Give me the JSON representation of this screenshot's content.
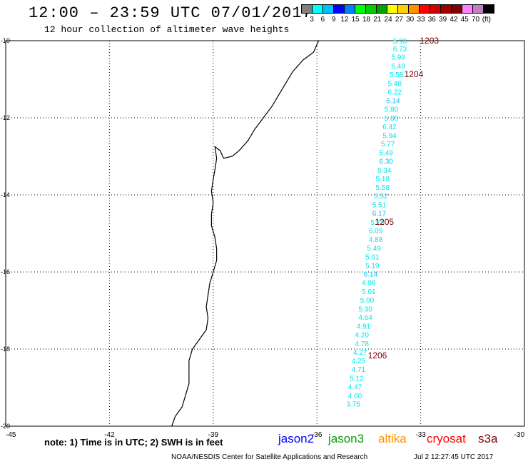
{
  "header": {
    "title": "12:00 – 23:59 UTC 07/01/2017",
    "subtitle": "12 hour collection of altimeter wave heights"
  },
  "colorbar": {
    "colors": [
      "#808080",
      "#00ffff",
      "#00bfff",
      "#0000ff",
      "#0080ff",
      "#00ff00",
      "#00cc00",
      "#00a000",
      "#ffff00",
      "#ffd000",
      "#ff9000",
      "#ff0000",
      "#d00000",
      "#a00000",
      "#800000",
      "#ff80ff",
      "#c080c0",
      "#000000"
    ],
    "ticks": [
      "3",
      "6",
      "9",
      "12",
      "15",
      "18",
      "21",
      "24",
      "27",
      "30",
      "33",
      "36",
      "39",
      "42",
      "45",
      "70",
      "(ft)"
    ]
  },
  "map": {
    "x_ticks": [
      "-45",
      "-42",
      "-39",
      "-36",
      "-33",
      "-30"
    ],
    "y_ticks": [
      "-10",
      "-12",
      "-14",
      "-16",
      "-18",
      "-20"
    ],
    "grid": true,
    "coast_color": "#000000"
  },
  "observations": [
    {
      "lon": -33.6,
      "lat": -10.0,
      "swh": "5.93",
      "color": "#00e5ee"
    },
    {
      "lon": -33.6,
      "lat": -10.2,
      "swh": "6.73",
      "color": "#00e5ee"
    },
    {
      "lon": -33.65,
      "lat": -10.42,
      "swh": "5.93",
      "color": "#00e5ee"
    },
    {
      "lon": -33.65,
      "lat": -10.65,
      "swh": "6.49",
      "color": "#00e5ee"
    },
    {
      "lon": -33.7,
      "lat": -10.87,
      "swh": "5.58",
      "color": "#00e5ee"
    },
    {
      "lon": -33.75,
      "lat": -11.1,
      "swh": "5.48",
      "color": "#00e5ee"
    },
    {
      "lon": -33.75,
      "lat": -11.32,
      "swh": "6.22",
      "color": "#00e5ee"
    },
    {
      "lon": -33.8,
      "lat": -11.55,
      "swh": "6.14",
      "color": "#00bfff"
    },
    {
      "lon": -33.85,
      "lat": -11.77,
      "swh": "5.80",
      "color": "#00e5ee"
    },
    {
      "lon": -33.85,
      "lat": -12.0,
      "swh": "5.80",
      "color": "#00e5ee"
    },
    {
      "lon": -33.9,
      "lat": -12.22,
      "swh": "6.42",
      "color": "#00e5ee"
    },
    {
      "lon": -33.9,
      "lat": -12.45,
      "swh": "5.94",
      "color": "#00e5ee"
    },
    {
      "lon": -33.95,
      "lat": -12.67,
      "swh": "5.77",
      "color": "#00e5ee"
    },
    {
      "lon": -34.0,
      "lat": -12.9,
      "swh": "5.49",
      "color": "#00e5ee"
    },
    {
      "lon": -34.0,
      "lat": -13.12,
      "swh": "6.30",
      "color": "#00bfff"
    },
    {
      "lon": -34.05,
      "lat": -13.35,
      "swh": "5.34",
      "color": "#00e5ee"
    },
    {
      "lon": -34.1,
      "lat": -13.57,
      "swh": "5.18",
      "color": "#00e5ee"
    },
    {
      "lon": -34.1,
      "lat": -13.8,
      "swh": "5.58",
      "color": "#00e5ee"
    },
    {
      "lon": -34.15,
      "lat": -14.02,
      "swh": "5.52",
      "color": "#00e5ee"
    },
    {
      "lon": -34.2,
      "lat": -14.25,
      "swh": "5.51",
      "color": "#00e5ee"
    },
    {
      "lon": -34.2,
      "lat": -14.47,
      "swh": "6.17",
      "color": "#00bfff"
    },
    {
      "lon": -34.25,
      "lat": -14.7,
      "swh": "5.73",
      "color": "#00e5ee"
    },
    {
      "lon": -34.3,
      "lat": -14.92,
      "swh": "6.09",
      "color": "#00e5ee"
    },
    {
      "lon": -34.3,
      "lat": -15.15,
      "swh": "4.88",
      "color": "#00e5ee"
    },
    {
      "lon": -34.35,
      "lat": -15.37,
      "swh": "5.49",
      "color": "#00e5ee"
    },
    {
      "lon": -34.4,
      "lat": -15.6,
      "swh": "5.01",
      "color": "#00e5ee"
    },
    {
      "lon": -34.4,
      "lat": -15.82,
      "swh": "5.19",
      "color": "#00e5ee"
    },
    {
      "lon": -34.45,
      "lat": -16.05,
      "swh": "6.14",
      "color": "#00bfff"
    },
    {
      "lon": -34.5,
      "lat": -16.27,
      "swh": "4.98",
      "color": "#00e5ee"
    },
    {
      "lon": -34.5,
      "lat": -16.5,
      "swh": "5.01",
      "color": "#00e5ee"
    },
    {
      "lon": -34.55,
      "lat": -16.72,
      "swh": "5.00",
      "color": "#00e5ee"
    },
    {
      "lon": -34.6,
      "lat": -16.95,
      "swh": "5.30",
      "color": "#00e5ee"
    },
    {
      "lon": -34.6,
      "lat": -17.17,
      "swh": "4.64",
      "color": "#00e5ee"
    },
    {
      "lon": -34.65,
      "lat": -17.4,
      "swh": "4.91",
      "color": "#00e5ee"
    },
    {
      "lon": -34.7,
      "lat": -17.62,
      "swh": "4.20",
      "color": "#00e5ee"
    },
    {
      "lon": -34.7,
      "lat": -17.85,
      "swh": "4.78",
      "color": "#00e5ee"
    },
    {
      "lon": -34.75,
      "lat": -18.07,
      "swh": "4.27",
      "color": "#00e5ee"
    },
    {
      "lon": -34.8,
      "lat": -18.3,
      "swh": "4.25",
      "color": "#00e5ee"
    },
    {
      "lon": -34.8,
      "lat": -18.52,
      "swh": "4.71",
      "color": "#00e5ee"
    },
    {
      "lon": -34.85,
      "lat": -18.75,
      "swh": "5.12",
      "color": "#00e5ee"
    },
    {
      "lon": -34.9,
      "lat": -18.97,
      "swh": "4.47",
      "color": "#00e5ee"
    },
    {
      "lon": -34.9,
      "lat": -19.2,
      "swh": "4.60",
      "color": "#00e5ee"
    },
    {
      "lon": -34.95,
      "lat": -19.42,
      "swh": "3.75",
      "color": "#00e5ee"
    }
  ],
  "time_labels": [
    {
      "lon": -32.75,
      "lat": -10.0,
      "text": "1203"
    },
    {
      "lon": -33.2,
      "lat": -10.87,
      "text": "1204"
    },
    {
      "lon": -34.05,
      "lat": -14.7,
      "text": "1205"
    },
    {
      "lon": -34.25,
      "lat": -18.17,
      "text": "1206"
    }
  ],
  "time_label_color": "#7a0000",
  "footer": {
    "note": "note:  1) Time is in UTC;  2) SWH is in feet",
    "satellites": [
      {
        "name": "jason2",
        "color": "#0000ff"
      },
      {
        "name": "jason3",
        "color": "#00a000"
      },
      {
        "name": "altika",
        "color": "#ff9000"
      },
      {
        "name": "cryosat",
        "color": "#ff0000"
      },
      {
        "name": "s3a",
        "color": "#800000"
      }
    ],
    "credit": "NOAA/NESDIS Center for Satellite Applications and Research",
    "timestamp": "Jul  2 12:27:45 UTC 2017"
  }
}
